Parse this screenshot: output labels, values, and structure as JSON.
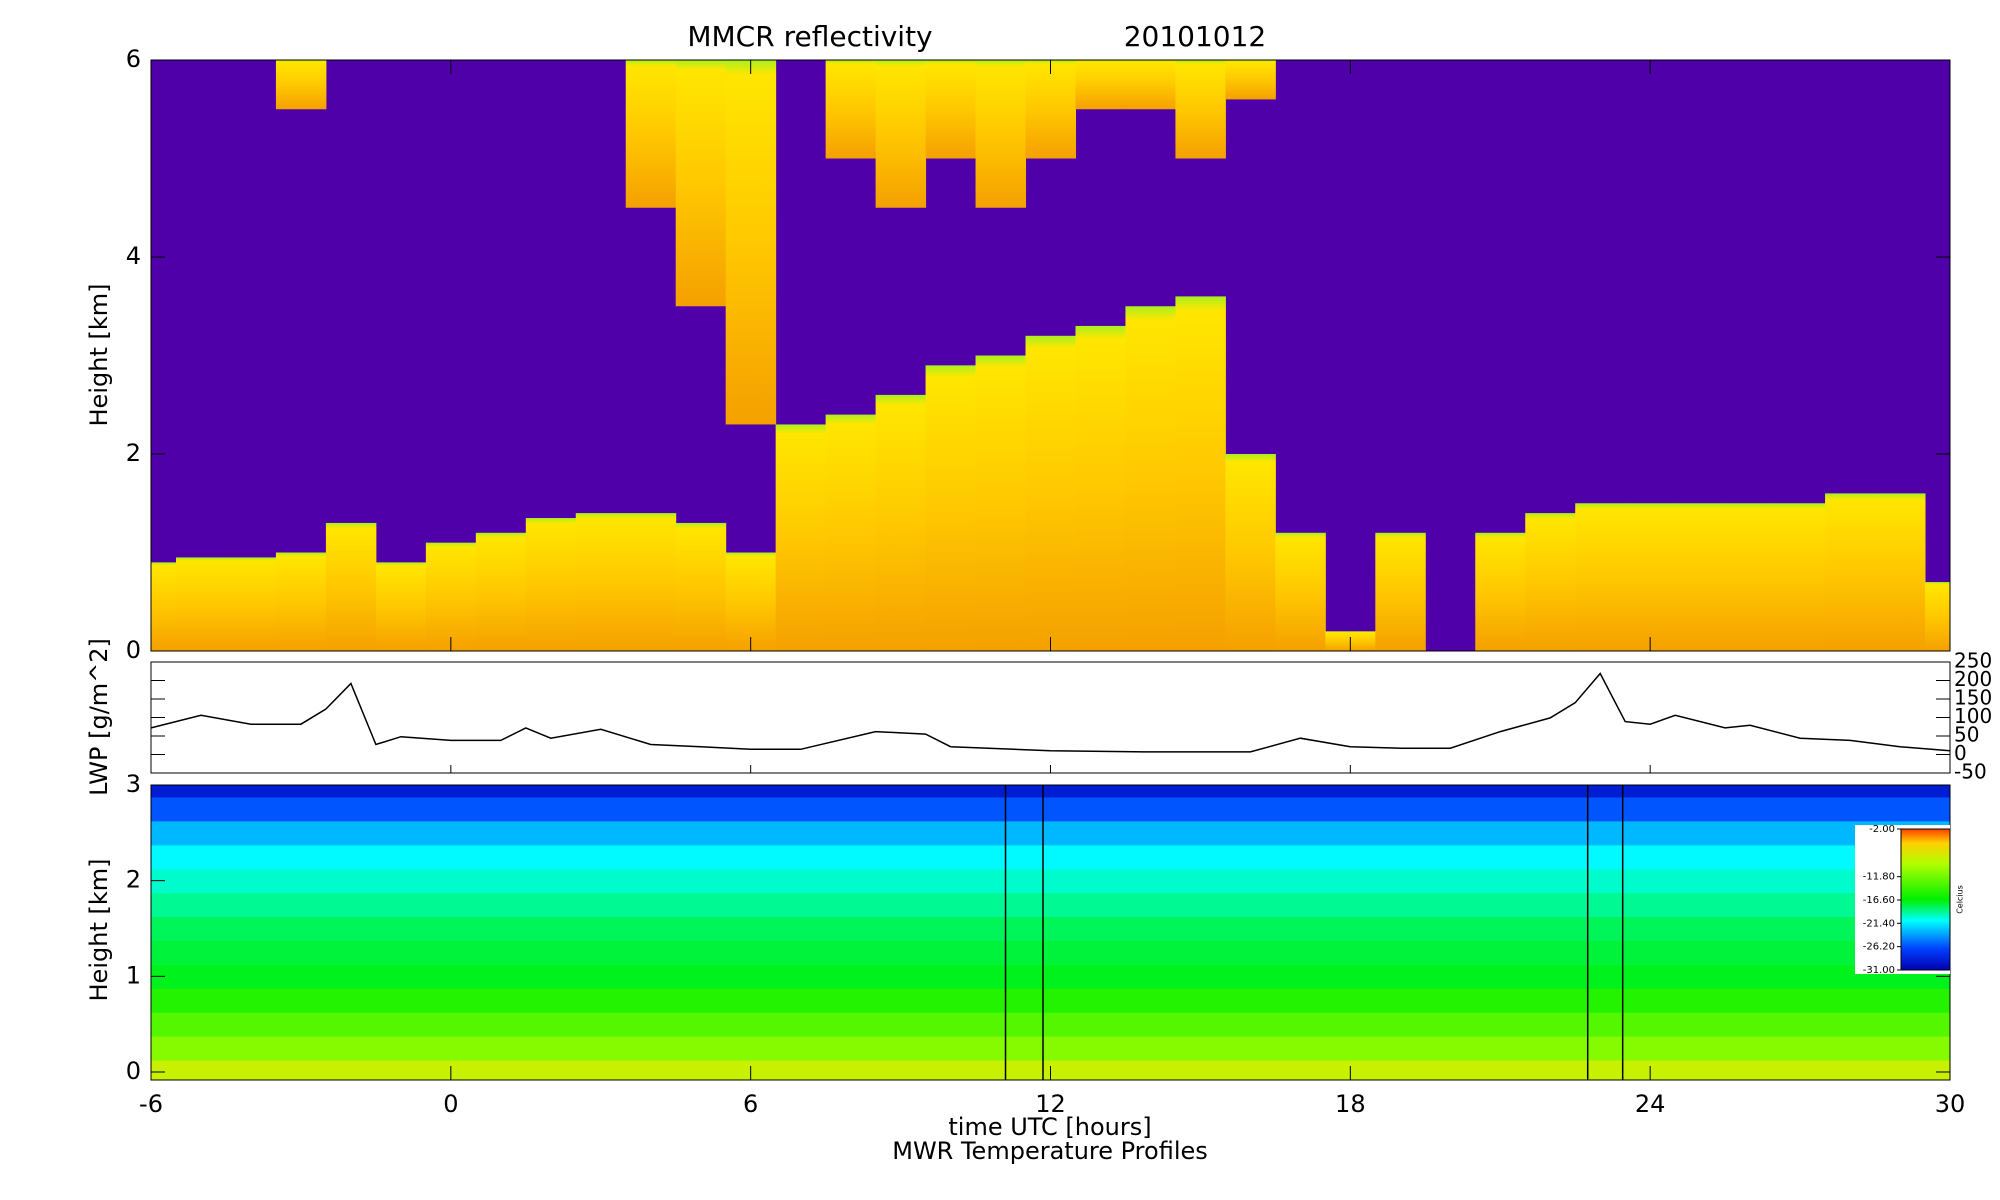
{
  "chart_data": [
    {
      "type": "heatmap",
      "title": "MMCR reflectivity",
      "subtitle": "20101012",
      "ylabel": "Height [km]",
      "ylim": [
        0,
        6
      ],
      "yticks": [
        0,
        2,
        4,
        6
      ],
      "background": "#5000a8",
      "x": [
        -6,
        -5,
        -4,
        -3,
        -2,
        -1,
        0,
        1,
        2,
        3,
        4,
        5,
        6,
        7,
        8,
        9,
        10,
        11,
        12,
        13,
        14,
        15,
        16,
        17,
        18,
        19,
        20,
        21,
        22,
        23,
        24,
        25,
        26,
        27,
        28,
        29,
        30
      ],
      "low_top": [
        0.9,
        0.95,
        0.95,
        1.0,
        1.3,
        0.9,
        1.1,
        1.2,
        1.35,
        1.4,
        1.4,
        1.3,
        1.0,
        2.3,
        2.4,
        2.6,
        2.9,
        3.0,
        3.2,
        3.3,
        3.5,
        3.6,
        2.0,
        1.2,
        0.2,
        1.2,
        null,
        1.2,
        1.4,
        1.5,
        1.5,
        1.5,
        1.5,
        1.5,
        1.6,
        1.6,
        0.7
      ],
      "high_base": [
        null,
        null,
        null,
        5.5,
        null,
        null,
        null,
        null,
        null,
        null,
        4.5,
        3.5,
        2.3,
        null,
        5.0,
        4.5,
        5.0,
        4.5,
        5.0,
        5.5,
        5.5,
        5.0,
        5.6,
        null,
        null,
        null,
        null,
        null,
        null,
        null,
        null,
        null,
        null,
        null,
        null,
        null,
        null
      ]
    },
    {
      "type": "line",
      "ylabel": "LWP [g/m^2]",
      "color": "#000000",
      "y2lim": [
        -50,
        250
      ],
      "y2ticks": [
        -50,
        0,
        50,
        100,
        150,
        200,
        250
      ],
      "x": [
        -6,
        -5,
        -4,
        -3,
        -2.5,
        -2,
        -1.5,
        -1,
        0,
        1,
        1.5,
        2,
        3,
        4,
        5,
        6,
        7,
        8.5,
        9.5,
        10,
        12,
        14,
        16,
        17,
        18,
        19,
        20,
        21,
        22,
        22.5,
        23,
        23.5,
        24,
        24.5,
        25.5,
        26,
        27,
        28,
        29,
        30
      ],
      "values": [
        72,
        106,
        82,
        82,
        123,
        192,
        27,
        48,
        38,
        38,
        72,
        44,
        68,
        27,
        21,
        14,
        14,
        62,
        55,
        21,
        10,
        7,
        7,
        44,
        21,
        17,
        17,
        62,
        99,
        140,
        219,
        89,
        82,
        106,
        72,
        79,
        44,
        38,
        21,
        10
      ]
    },
    {
      "type": "heatmap",
      "ylabel": "Height [km]",
      "ylim": [
        0,
        3
      ],
      "yticks": [
        0,
        1,
        2,
        3
      ],
      "xlim": [
        -6,
        30
      ],
      "xticks": [
        -6,
        0,
        6,
        12,
        18,
        24,
        30
      ],
      "xlabel": "time UTC [hours]",
      "subtitle": "MWR Temperature Profiles",
      "heights": [
        0,
        0.25,
        0.5,
        0.75,
        1,
        1.25,
        1.5,
        1.75,
        2,
        2.25,
        2.5,
        2.75,
        3
      ],
      "temperatures": [
        -8,
        -11,
        -13,
        -15,
        -17,
        -17.5,
        -18,
        -19,
        -20,
        -21,
        -23,
        -26,
        -29
      ],
      "clim": [
        -31,
        -2
      ],
      "colorbar_ticks": [
        {
          "value": -2,
          "label": "-2.00"
        },
        {
          "value": -11.8,
          "label": "-11.80"
        },
        {
          "value": -16.6,
          "label": "-16.60"
        },
        {
          "value": -21.4,
          "label": "-21.40"
        },
        {
          "value": -26.2,
          "label": "-26.20"
        },
        {
          "value": -31,
          "label": "-31.00"
        }
      ],
      "colorbar_label": "Celcius",
      "markers_x": [
        11.1,
        11.85,
        22.75,
        23.45
      ]
    }
  ]
}
